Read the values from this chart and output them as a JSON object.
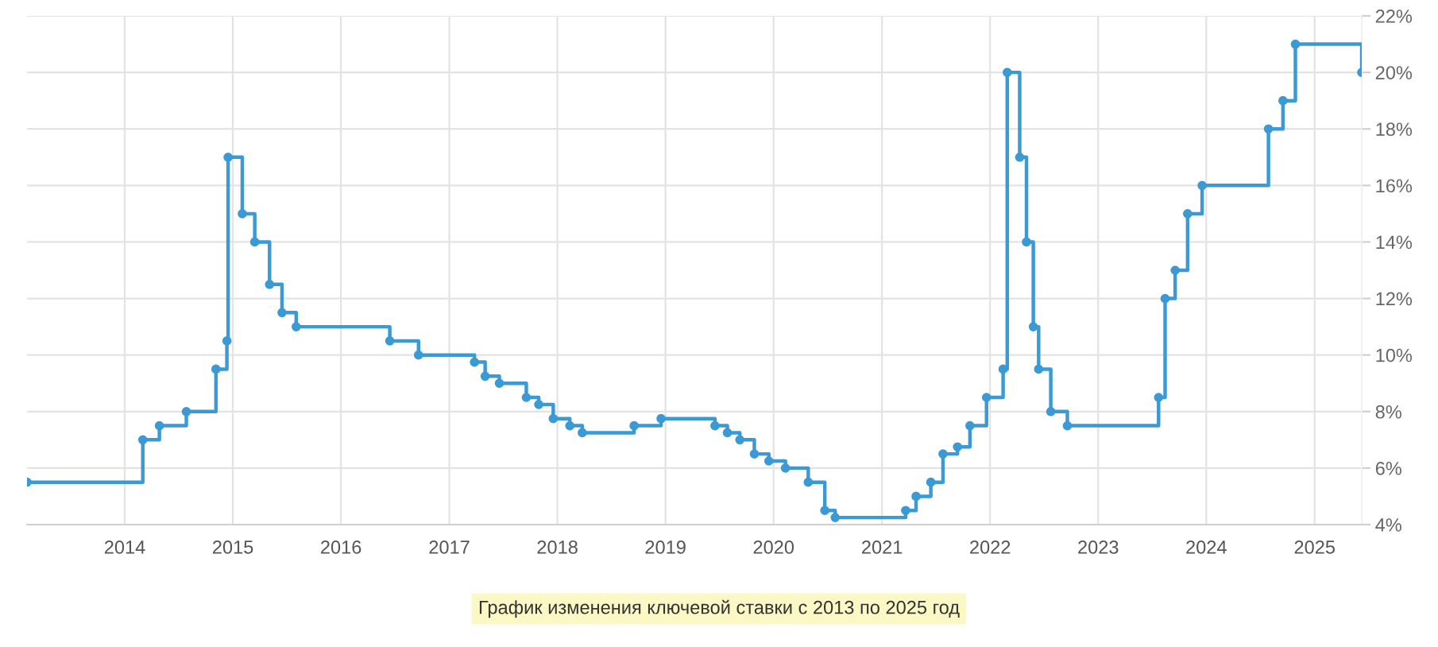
{
  "chart_data": {
    "type": "step",
    "x": [
      "2013-02-05",
      "2014-03-03",
      "2014-04-28",
      "2014-07-28",
      "2014-11-05",
      "2014-12-12",
      "2014-12-16",
      "2015-02-02",
      "2015-03-16",
      "2015-05-05",
      "2015-06-16",
      "2015-08-03",
      "2016-06-14",
      "2016-09-19",
      "2017-03-27",
      "2017-05-02",
      "2017-06-19",
      "2017-09-18",
      "2017-10-30",
      "2017-12-18",
      "2018-02-12",
      "2018-03-26",
      "2018-09-17",
      "2018-12-17",
      "2019-06-17",
      "2019-07-29",
      "2019-09-09",
      "2019-10-28",
      "2019-12-16",
      "2020-02-10",
      "2020-04-27",
      "2020-06-22",
      "2020-07-27",
      "2021-03-22",
      "2021-04-26",
      "2021-06-15",
      "2021-07-26",
      "2021-09-13",
      "2021-10-25",
      "2021-12-20",
      "2022-02-14",
      "2022-02-28",
      "2022-04-11",
      "2022-05-04",
      "2022-05-27",
      "2022-06-14",
      "2022-07-25",
      "2022-09-19",
      "2023-07-24",
      "2023-08-15",
      "2023-09-18",
      "2023-10-30",
      "2023-12-18",
      "2024-07-29",
      "2024-09-16",
      "2024-10-28",
      "2025-06-09"
    ],
    "series": [
      {
        "color": "#3b99d4",
        "values": [
          5.5,
          7.0,
          7.5,
          8.0,
          9.5,
          10.5,
          17.0,
          15.0,
          14.0,
          12.5,
          11.5,
          11.0,
          10.5,
          10.0,
          9.75,
          9.25,
          9.0,
          8.5,
          8.25,
          7.75,
          7.5,
          7.25,
          7.5,
          7.75,
          7.5,
          7.25,
          7.0,
          6.5,
          6.25,
          6.0,
          5.5,
          4.5,
          4.25,
          4.5,
          5.0,
          5.5,
          6.5,
          6.75,
          7.5,
          8.5,
          9.5,
          20.0,
          17.0,
          14.0,
          11.0,
          9.5,
          8.0,
          7.5,
          8.5,
          12.0,
          13.0,
          15.0,
          16.0,
          18.0,
          19.0,
          21.0,
          20.0
        ]
      }
    ],
    "xlim": [
      "2013-02-05",
      "2025-06-09"
    ],
    "xticks": [
      {
        "value": "2014",
        "label": "2014"
      },
      {
        "value": "2015",
        "label": "2015"
      },
      {
        "value": "2016",
        "label": "2016"
      },
      {
        "value": "2017",
        "label": "2017"
      },
      {
        "value": "2018",
        "label": "2018"
      },
      {
        "value": "2019",
        "label": "2019"
      },
      {
        "value": "2020",
        "label": "2020"
      },
      {
        "value": "2021",
        "label": "2021"
      },
      {
        "value": "2022",
        "label": "2022"
      },
      {
        "value": "2023",
        "label": "2023"
      },
      {
        "value": "2024",
        "label": "2024"
      },
      {
        "value": "2025",
        "label": "2025"
      }
    ],
    "ylim": [
      4,
      22
    ],
    "yticks": [
      {
        "value": 4,
        "label": "4%"
      },
      {
        "value": 6,
        "label": "6%"
      },
      {
        "value": 8,
        "label": "8%"
      },
      {
        "value": 10,
        "label": "10%"
      },
      {
        "value": 12,
        "label": "12%"
      },
      {
        "value": 14,
        "label": "14%"
      },
      {
        "value": 16,
        "label": "16%"
      },
      {
        "value": 18,
        "label": "18%"
      },
      {
        "value": 20,
        "label": "20%"
      },
      {
        "value": 22,
        "label": "22%"
      }
    ],
    "grid": true,
    "marker": "circle",
    "line_style": "solid",
    "annotations": [
      "График изменения ключевой ставки с 2013 по 2025 год"
    ]
  }
}
